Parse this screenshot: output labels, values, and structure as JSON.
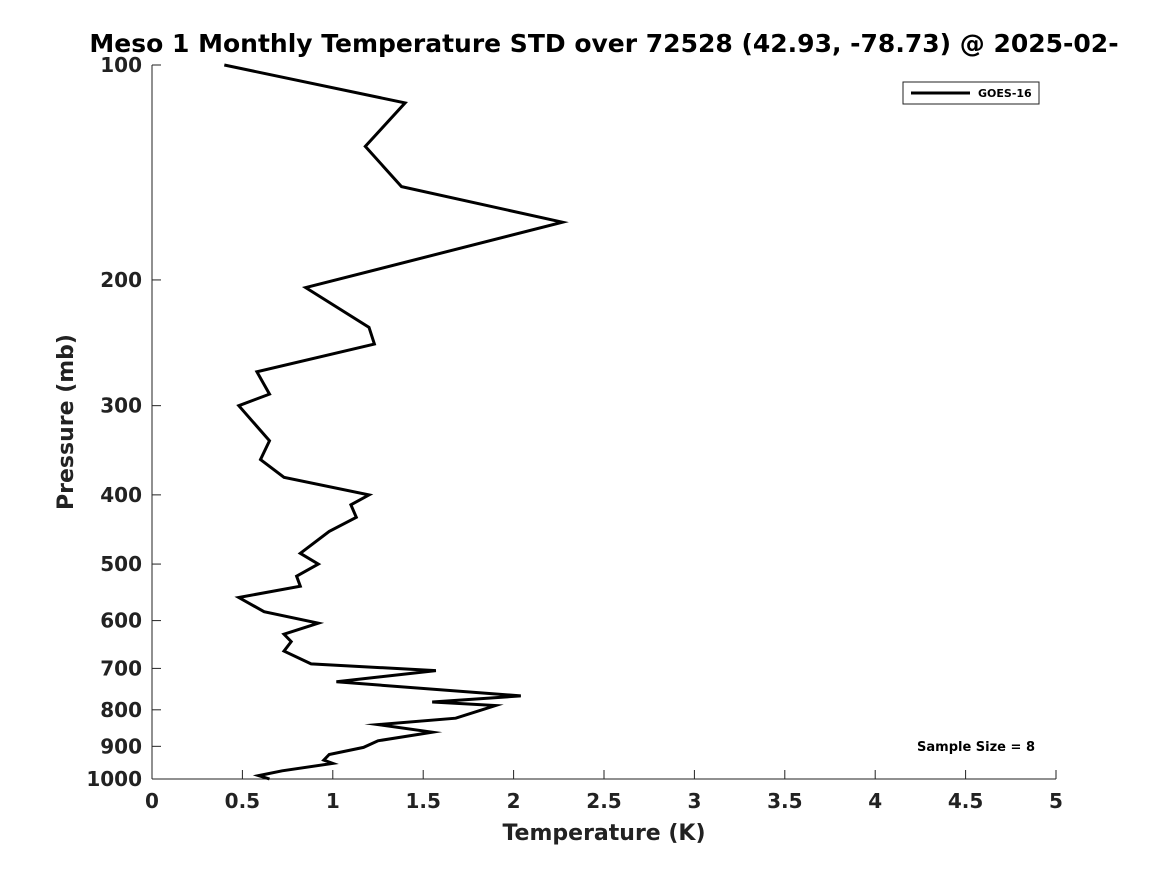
{
  "chart_data": {
    "type": "line",
    "title": "Meso 1 Monthly Temperature STD over 72528 (42.93, -78.73) @ 2025-02-",
    "xlabel": "Temperature (K)",
    "ylabel": "Pressure (mb)",
    "xlim": [
      0,
      5
    ],
    "ylim": [
      100,
      1000
    ],
    "y_scale": "log",
    "y_inverted": true,
    "grid": false,
    "x_ticks": [
      "0",
      "0.5",
      "1",
      "1.5",
      "2",
      "2.5",
      "3",
      "3.5",
      "4",
      "4.5",
      "5"
    ],
    "y_ticks": [
      "100",
      "200",
      "300",
      "400",
      "500",
      "600",
      "700",
      "800",
      "900",
      "1000"
    ],
    "legend": {
      "position": "top-right",
      "entries": [
        "GOES-16"
      ]
    },
    "annotation": "Sample Size = 8",
    "series": [
      {
        "name": "GOES-16",
        "color": "#000000",
        "x": [
          0.4,
          1.4,
          1.18,
          1.38,
          2.27,
          0.85,
          1.2,
          1.23,
          0.58,
          0.65,
          0.48,
          0.65,
          0.6,
          0.73,
          1.2,
          1.1,
          1.13,
          0.98,
          0.82,
          0.92,
          0.8,
          0.82,
          0.48,
          0.62,
          0.92,
          0.73,
          0.77,
          0.73,
          0.88,
          1.57,
          1.02,
          2.04,
          1.55,
          1.9,
          1.68,
          1.25,
          1.55,
          1.25,
          1.17,
          0.98,
          0.95,
          1.0,
          0.72,
          0.59,
          0.65
        ],
        "y": [
          100,
          113,
          130,
          148,
          166,
          205,
          233,
          246,
          269,
          289,
          300,
          336,
          357,
          378,
          400,
          413,
          430,
          450,
          483,
          500,
          520,
          537,
          557,
          583,
          605,
          627,
          642,
          662,
          690,
          705,
          731,
          765,
          780,
          789,
          822,
          839,
          860,
          884,
          903,
          924,
          941,
          951,
          974,
          989,
          1000
        ]
      }
    ]
  }
}
